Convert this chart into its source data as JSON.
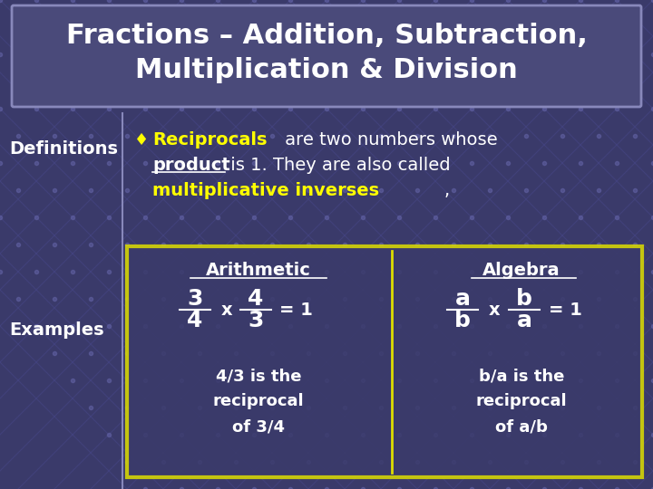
{
  "title_line1": "Fractions – Addition, Subtraction,",
  "title_line2": "Multiplication & Division",
  "title_bg": "#4a4a7a",
  "title_border": "#8888bb",
  "slide_bg_dark": "#3a3a6a",
  "white": "#ffffff",
  "yellow": "#ffff00",
  "definitions_label": "Definitions",
  "examples_label": "Examples",
  "box_border": "#dddd00",
  "box_bg": "#3a3a6a",
  "divider_color": "#dddd00",
  "arith_label": "Arithmetic",
  "algebra_label": "Algebra",
  "arith_desc1": "4/3 is the",
  "arith_desc2": "reciprocal",
  "arith_desc3": "of 3/4",
  "alg_desc1": "b/a is the",
  "alg_desc2": "reciprocal",
  "alg_desc3": "of a/b"
}
